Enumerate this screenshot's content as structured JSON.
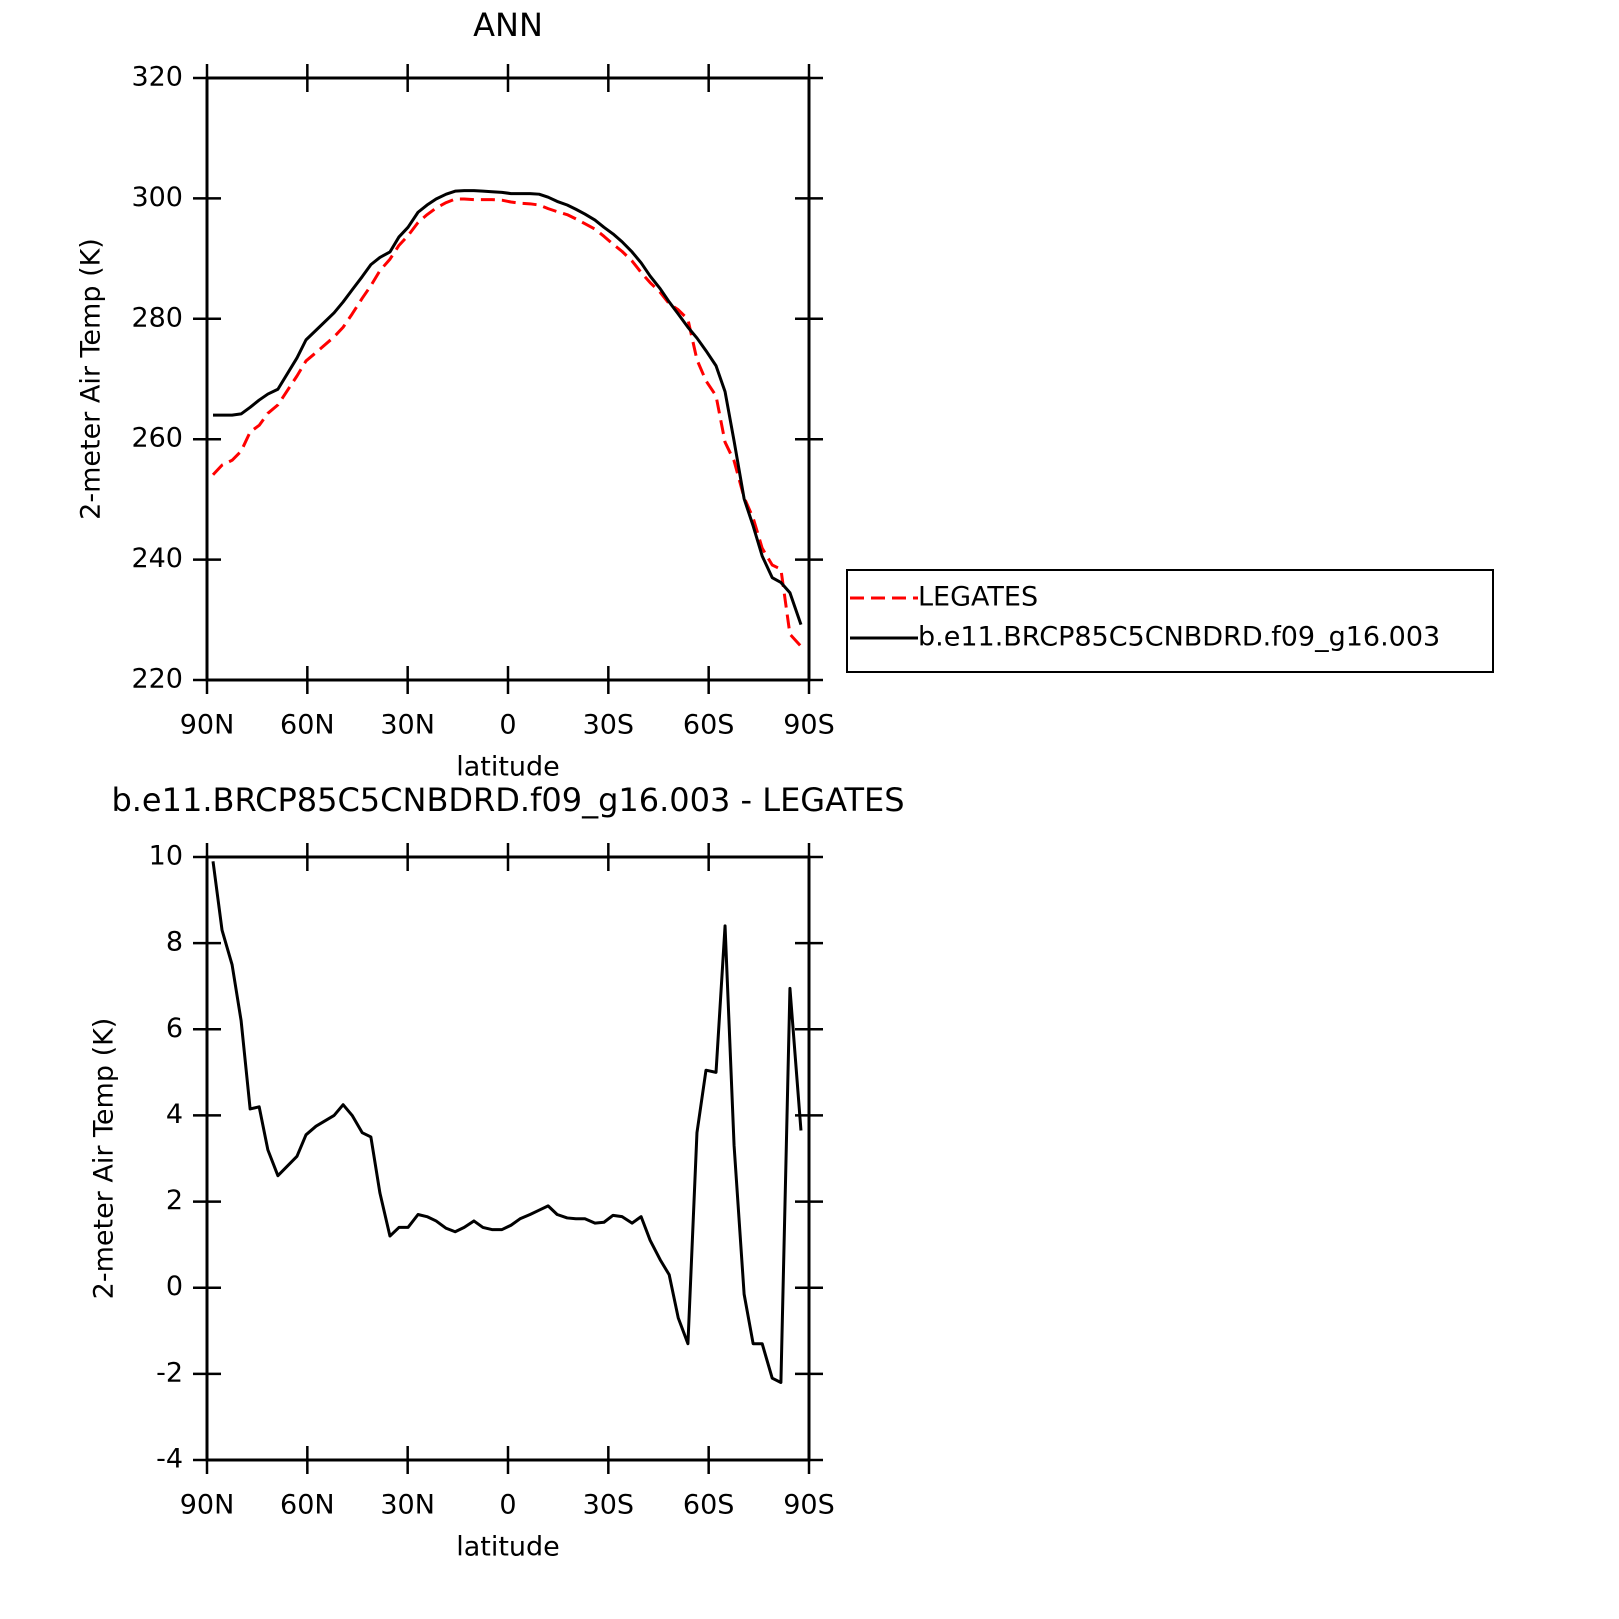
{
  "chart_data": [
    {
      "type": "line",
      "title": "ANN",
      "xlabel": "latitude",
      "ylabel": "2-meter Air Temp (K)",
      "x": [
        88.2,
        85.5,
        82.5,
        79.8,
        77.1,
        74.4,
        71.8,
        68.8,
        63.1,
        60.4,
        57.4,
        52.0,
        49.3,
        46.6,
        43.6,
        41.0,
        38.3,
        35.3,
        32.6,
        29.9,
        26.9,
        24.2,
        21.5,
        18.5,
        15.8,
        13.1,
        10.2,
        7.5,
        4.8,
        1.8,
        -0.9,
        -3.6,
        -6.6,
        -9.3,
        -12.0,
        -14.7,
        -17.7,
        -20.3,
        -23.0,
        -26.0,
        -28.7,
        -31.4,
        -34.1,
        -37.1,
        -39.8,
        -42.5,
        -45.5,
        -48.2,
        -50.9,
        -53.8,
        -56.5,
        -59.2,
        -62.2,
        -64.9,
        -67.6,
        -70.6,
        -73.3,
        -76.0,
        -79.0,
        -81.6,
        -84.3,
        -87.6
      ],
      "series": [
        {
          "name": "LEGATES",
          "color": "#ff0000",
          "dash": true,
          "values": [
            254.1,
            255.7,
            256.5,
            258.0,
            261.2,
            262.3,
            264.3,
            265.7,
            270.5,
            273.0,
            274.4,
            277.0,
            278.6,
            280.8,
            283.4,
            285.5,
            288.0,
            289.9,
            292.2,
            293.8,
            296.0,
            297.3,
            298.4,
            299.3,
            299.9,
            299.9,
            299.8,
            299.8,
            299.8,
            299.7,
            299.4,
            299.2,
            299.1,
            298.9,
            298.3,
            297.8,
            297.3,
            296.6,
            295.8,
            294.9,
            293.7,
            292.4,
            291.2,
            289.6,
            287.7,
            286.0,
            284.4,
            282.5,
            281.5,
            279.9,
            273.2,
            269.7,
            267.2,
            259.5,
            256.4,
            250.3,
            246.9,
            241.9,
            239.1,
            238.4,
            227.6,
            225.6
          ]
        },
        {
          "name": "b.e11.BRCP85C5CNBDRD.f09_g16.003",
          "color": "#000000",
          "dash": false,
          "values": [
            264.0,
            264.0,
            264.0,
            264.2,
            265.3,
            266.5,
            267.5,
            268.3,
            273.5,
            276.5,
            278.1,
            281.0,
            282.8,
            284.8,
            287.0,
            289.0,
            290.2,
            291.1,
            293.6,
            295.2,
            297.7,
            298.9,
            299.9,
            300.7,
            301.2,
            301.3,
            301.3,
            301.2,
            301.1,
            301.0,
            300.8,
            300.8,
            300.8,
            300.7,
            300.2,
            299.5,
            298.9,
            298.2,
            297.4,
            296.4,
            295.2,
            294.1,
            292.8,
            291.1,
            289.3,
            287.1,
            285.0,
            282.8,
            280.8,
            278.6,
            276.8,
            274.7,
            272.2,
            267.9,
            259.7,
            250.1,
            245.6,
            240.6,
            237.0,
            236.2,
            234.5,
            229.2
          ]
        }
      ],
      "xlim": [
        90,
        -90
      ],
      "xticks": [
        {
          "value": 90,
          "label": "90N"
        },
        {
          "value": 60,
          "label": "60N"
        },
        {
          "value": 30,
          "label": "30N"
        },
        0,
        {
          "value": -30,
          "label": "30S"
        },
        {
          "value": -60,
          "label": "60S"
        },
        {
          "value": -90,
          "label": "90S"
        }
      ],
      "ylim": [
        220,
        320
      ],
      "yticks": [
        220,
        240,
        260,
        280,
        300,
        320
      ],
      "legend": "right"
    },
    {
      "type": "line",
      "title": "b.e11.BRCP85C5CNBDRD.f09_g16.003 - LEGATES",
      "xlabel": "latitude",
      "ylabel": "2-meter Air Temp (K)",
      "x": [
        88.2,
        85.5,
        82.5,
        79.8,
        77.1,
        74.4,
        71.8,
        68.8,
        63.1,
        60.4,
        57.4,
        52.0,
        49.3,
        46.6,
        43.6,
        41.0,
        38.3,
        35.3,
        32.6,
        29.9,
        26.9,
        24.2,
        21.5,
        18.5,
        15.8,
        13.1,
        10.2,
        7.5,
        4.8,
        1.8,
        -0.9,
        -3.6,
        -6.6,
        -9.3,
        -12.0,
        -14.7,
        -17.7,
        -20.3,
        -23.0,
        -26.0,
        -28.7,
        -31.4,
        -34.1,
        -37.1,
        -39.8,
        -42.5,
        -45.5,
        -48.2,
        -50.9,
        -53.8,
        -56.5,
        -59.2,
        -62.2,
        -64.9,
        -67.6,
        -70.6,
        -73.3,
        -76.0,
        -79.0,
        -81.6,
        -84.3,
        -87.6
      ],
      "series": [
        {
          "color": "#000000",
          "dash": false,
          "values": [
            9.9,
            8.3,
            7.5,
            6.2,
            4.15,
            4.2,
            3.2,
            2.6,
            3.05,
            3.55,
            3.75,
            4.0,
            4.25,
            4.0,
            3.6,
            3.5,
            2.2,
            1.2,
            1.4,
            1.4,
            1.7,
            1.65,
            1.55,
            1.38,
            1.3,
            1.4,
            1.55,
            1.4,
            1.35,
            1.35,
            1.45,
            1.6,
            1.7,
            1.8,
            1.9,
            1.7,
            1.62,
            1.6,
            1.6,
            1.5,
            1.52,
            1.68,
            1.65,
            1.5,
            1.65,
            1.1,
            0.65,
            0.3,
            -0.7,
            -1.3,
            3.6,
            5.05,
            5.0,
            8.4,
            3.3,
            -0.15,
            -1.3,
            -1.3,
            -2.1,
            -2.2,
            6.95,
            3.65
          ]
        }
      ],
      "xlim": [
        90,
        -90
      ],
      "xticks": [
        {
          "value": 90,
          "label": "90N"
        },
        {
          "value": 60,
          "label": "60N"
        },
        {
          "value": 30,
          "label": "30N"
        },
        0,
        {
          "value": -30,
          "label": "30S"
        },
        {
          "value": -60,
          "label": "60S"
        },
        {
          "value": -90,
          "label": "90S"
        }
      ],
      "ylim": [
        -4,
        10
      ],
      "yticks": [
        -4,
        -2,
        0,
        2,
        4,
        6,
        8,
        10
      ]
    }
  ]
}
